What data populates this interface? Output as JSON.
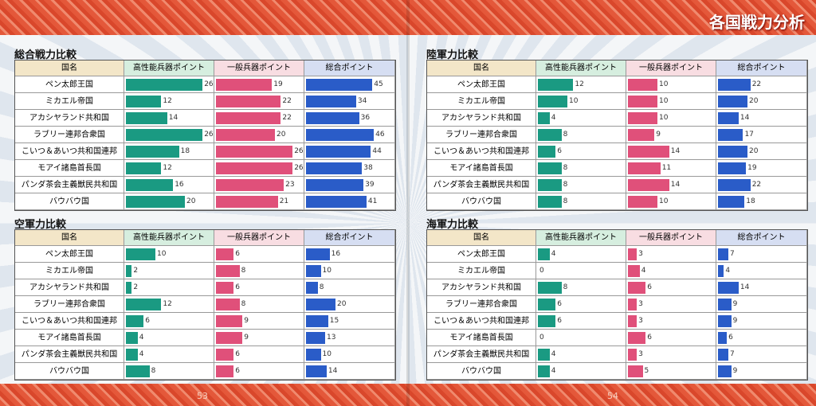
{
  "header": {
    "title": "各国戦力分析"
  },
  "page_numbers": [
    "53",
    "54"
  ],
  "tables": [
    {
      "title": "総合戦力比較",
      "columns": [
        "国名",
        "高性能兵器ポイント",
        "一般兵器ポイント",
        "総合ポイント"
      ],
      "rows": [
        {
          "name": "ペン太郎王国",
          "values": [
            26,
            19,
            45
          ]
        },
        {
          "name": "ミカエル帝国",
          "values": [
            12,
            22,
            34
          ]
        },
        {
          "name": "アカシヤランド共和国",
          "values": [
            14,
            22,
            36
          ]
        },
        {
          "name": "ラブリー連邦合衆国",
          "values": [
            26,
            20,
            46
          ]
        },
        {
          "name": "こいつ＆あいつ共和国連邦",
          "values": [
            18,
            26,
            44
          ]
        },
        {
          "name": "モアイ諸島首長国",
          "values": [
            12,
            26,
            38
          ]
        },
        {
          "name": "パンダ茶会主義獣民共和国",
          "values": [
            16,
            23,
            39
          ]
        },
        {
          "name": "バウバウ国",
          "values": [
            20,
            21,
            41
          ]
        }
      ]
    },
    {
      "title": "陸軍力比較",
      "columns": [
        "国名",
        "高性能兵器ポイント",
        "一般兵器ポイント",
        "総合ポイント"
      ],
      "rows": [
        {
          "name": "ペン太郎王国",
          "values": [
            12,
            10,
            22
          ]
        },
        {
          "name": "ミカエル帝国",
          "values": [
            10,
            10,
            20
          ]
        },
        {
          "name": "アカシヤランド共和国",
          "values": [
            4,
            10,
            14
          ]
        },
        {
          "name": "ラブリー連邦合衆国",
          "values": [
            8,
            9,
            17
          ]
        },
        {
          "name": "こいつ＆あいつ共和国連邦",
          "values": [
            6,
            14,
            20
          ]
        },
        {
          "name": "モアイ諸島首長国",
          "values": [
            8,
            11,
            19
          ]
        },
        {
          "name": "パンダ茶会主義獣民共和国",
          "values": [
            8,
            14,
            22
          ]
        },
        {
          "name": "バウバウ国",
          "values": [
            8,
            10,
            18
          ]
        }
      ]
    },
    {
      "title": "空軍力比較",
      "columns": [
        "国名",
        "高性能兵器ポイント",
        "一般兵器ポイント",
        "総合ポイント"
      ],
      "rows": [
        {
          "name": "ペン太郎王国",
          "values": [
            10,
            6,
            16
          ]
        },
        {
          "name": "ミカエル帝国",
          "values": [
            2,
            8,
            10
          ]
        },
        {
          "name": "アカシヤランド共和国",
          "values": [
            2,
            6,
            8
          ]
        },
        {
          "name": "ラブリー連邦合衆国",
          "values": [
            12,
            8,
            20
          ]
        },
        {
          "name": "こいつ＆あいつ共和国連邦",
          "values": [
            6,
            9,
            15
          ]
        },
        {
          "name": "モアイ諸島首長国",
          "values": [
            4,
            9,
            13
          ]
        },
        {
          "name": "パンダ茶会主義獣民共和国",
          "values": [
            4,
            6,
            10
          ]
        },
        {
          "name": "バウバウ国",
          "values": [
            8,
            6,
            14
          ]
        }
      ]
    },
    {
      "title": "海軍力比較",
      "columns": [
        "国名",
        "高性能兵器ポイント",
        "一般兵器ポイント",
        "総合ポイント"
      ],
      "rows": [
        {
          "name": "ペン太郎王国",
          "values": [
            4,
            3,
            7
          ]
        },
        {
          "name": "ミカエル帝国",
          "values": [
            0,
            4,
            4
          ]
        },
        {
          "name": "アカシヤランド共和国",
          "values": [
            8,
            6,
            14
          ]
        },
        {
          "name": "ラブリー連邦合衆国",
          "values": [
            6,
            3,
            9
          ]
        },
        {
          "name": "こいつ＆あいつ共和国連邦",
          "values": [
            6,
            3,
            9
          ]
        },
        {
          "name": "モアイ諸島首長国",
          "values": [
            0,
            6,
            6
          ]
        },
        {
          "name": "パンダ茶会主義獣民共和国",
          "values": [
            4,
            3,
            7
          ]
        },
        {
          "name": "バウバウ国",
          "values": [
            4,
            5,
            9
          ]
        }
      ]
    }
  ]
}
